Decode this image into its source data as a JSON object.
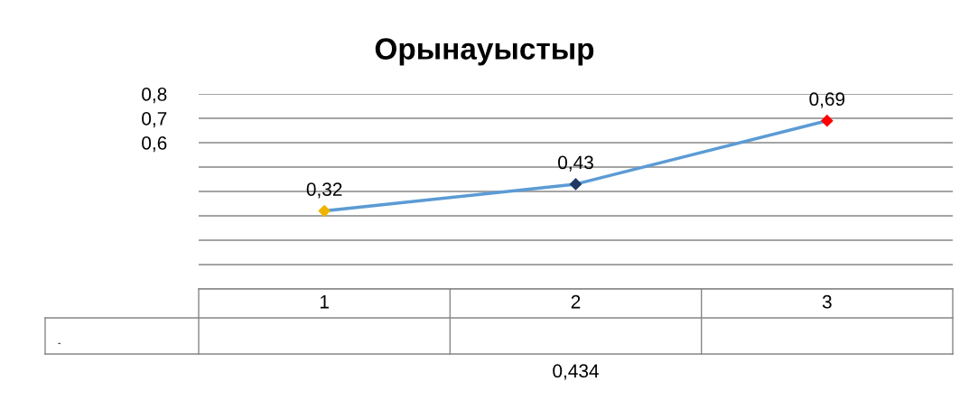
{
  "chart_data": {
    "type": "line",
    "title": "Орынауыстыр",
    "categories": [
      "1",
      "2",
      "3"
    ],
    "series": [
      {
        "color": "#5b9bd5",
        "colors": [
          "#f0b400",
          "#1f3864",
          "#ff0000"
        ],
        "values": [
          0.32,
          0.43,
          0.69
        ],
        "value_labels": [
          "0,32",
          "0,43",
          "0,69"
        ]
      }
    ],
    "ylim": [
      0,
      0.8
    ],
    "yticks": [
      {
        "value": 0,
        "label": null
      },
      {
        "value": 0.1,
        "label": null
      },
      {
        "value": 0.2,
        "label": null
      },
      {
        "value": 0.3,
        "label": null
      },
      {
        "value": 0.4,
        "label": null
      },
      {
        "value": 0.5,
        "label": null
      },
      {
        "value": 0.6,
        "label": "0,6"
      },
      {
        "value": 0.7,
        "label": "0,7"
      },
      {
        "value": 0.8,
        "label": "0,8"
      }
    ],
    "grid": "y",
    "marker": "diamond",
    "line_style": "solid",
    "annotations": [
      "-",
      "0,434"
    ]
  }
}
